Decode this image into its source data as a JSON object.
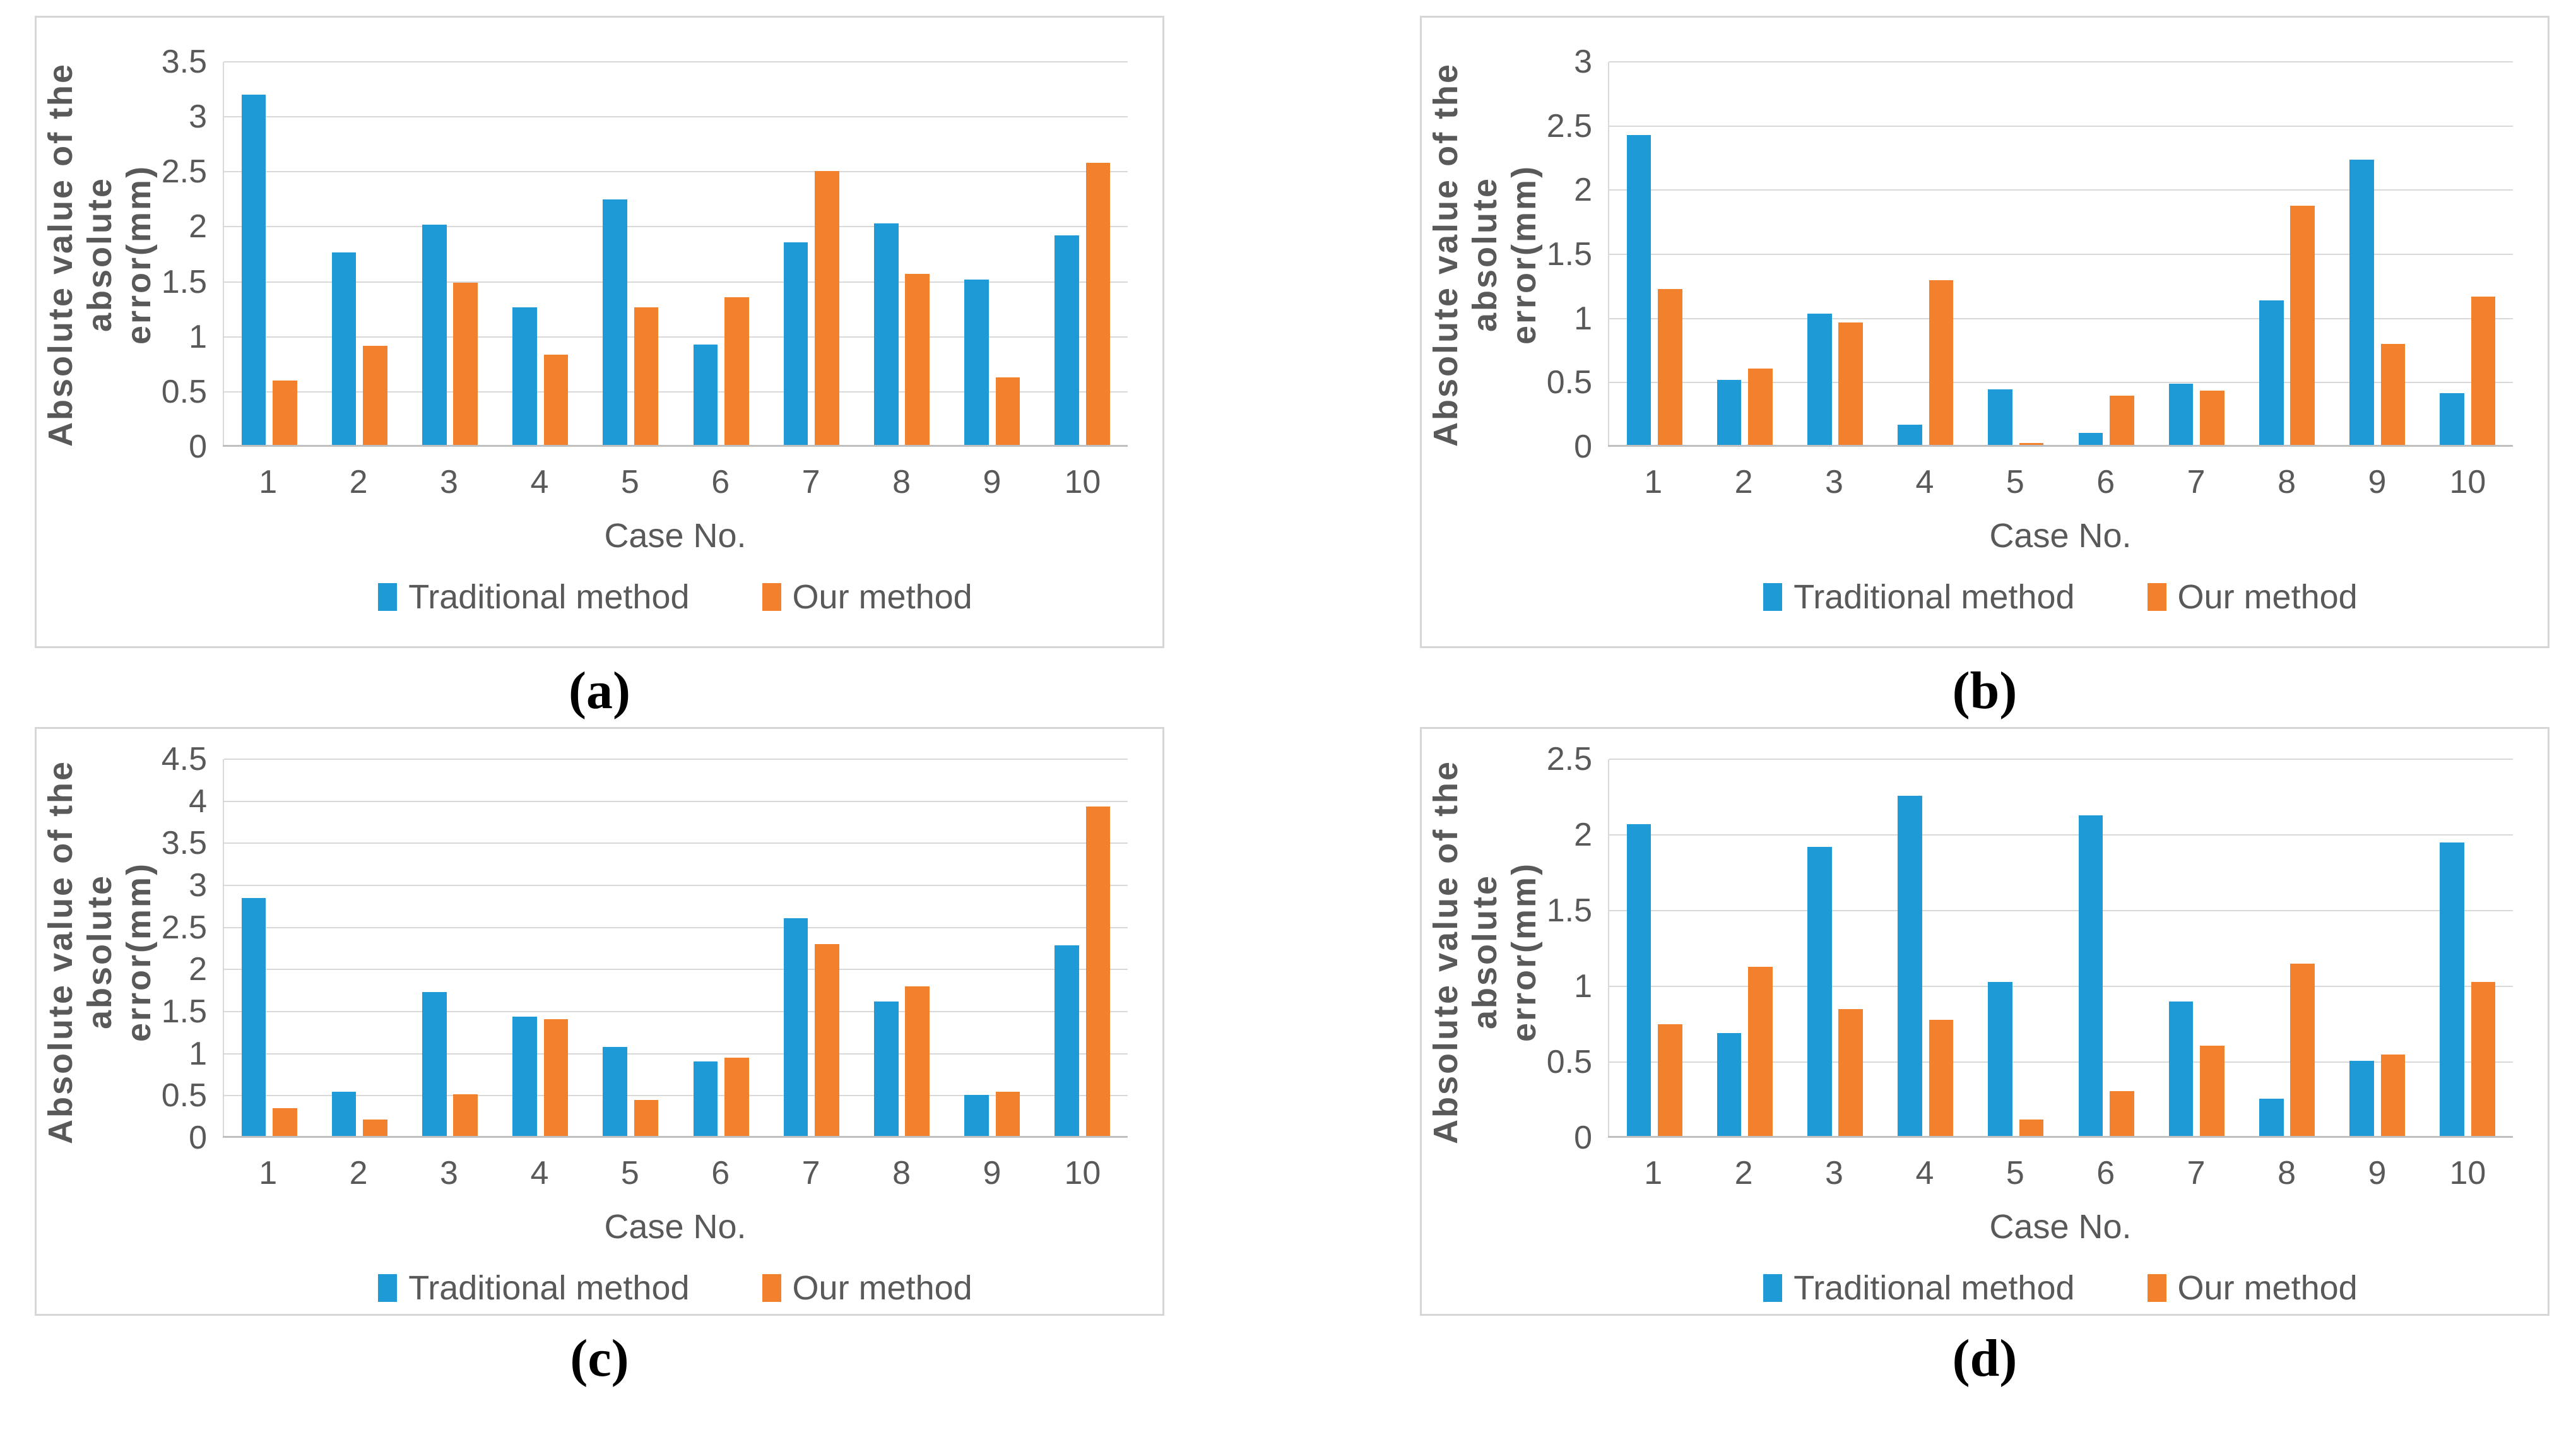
{
  "figure": {
    "text_color": "#595959",
    "grid_color": "#d9d9d9",
    "axis_line_color": "#bfbfbf",
    "panel_border_color": "#d6d6d6",
    "series_colors": {
      "traditional": "#1e9bd7",
      "our": "#f2802c"
    }
  },
  "chart_data": [
    {
      "id": "a",
      "type": "bar",
      "caption": "(a)",
      "categories": [
        "1",
        "2",
        "3",
        "4",
        "5",
        "6",
        "7",
        "8",
        "9",
        "10"
      ],
      "series": [
        {
          "name": "Traditional method",
          "color": "#1e9bd7",
          "values": [
            3.2,
            1.77,
            2.02,
            1.27,
            2.25,
            0.93,
            1.86,
            2.03,
            1.52,
            1.92
          ]
        },
        {
          "name": "Our method",
          "color": "#f2802c",
          "values": [
            0.6,
            0.92,
            1.49,
            0.84,
            1.27,
            1.36,
            2.51,
            1.57,
            0.63,
            2.58
          ]
        }
      ],
      "xlabel": "Case No.",
      "ylabel_lines": [
        "Absolute value of the absolute",
        "error(mm)"
      ],
      "ylim": [
        0,
        3.5
      ],
      "ytick_step": 0.5,
      "grid": true,
      "legend_position": "bottom"
    },
    {
      "id": "b",
      "type": "bar",
      "caption": "(b)",
      "categories": [
        "1",
        "2",
        "3",
        "4",
        "5",
        "6",
        "7",
        "8",
        "9",
        "10"
      ],
      "series": [
        {
          "name": "Traditional method",
          "color": "#1e9bd7",
          "values": [
            2.43,
            0.52,
            1.04,
            0.17,
            0.45,
            0.11,
            0.49,
            1.14,
            2.24,
            0.42
          ]
        },
        {
          "name": "Our method",
          "color": "#f2802c",
          "values": [
            1.23,
            0.61,
            0.97,
            1.3,
            0.03,
            0.4,
            0.44,
            1.88,
            0.8,
            1.17
          ]
        }
      ],
      "xlabel": "Case No.",
      "ylabel_lines": [
        "Absolute value of the absolute",
        "error(mm)"
      ],
      "ylim": [
        0,
        3
      ],
      "ytick_step": 0.5,
      "grid": true,
      "legend_position": "bottom"
    },
    {
      "id": "c",
      "type": "bar",
      "caption": "(c)",
      "categories": [
        "1",
        "2",
        "3",
        "4",
        "5",
        "6",
        "7",
        "8",
        "9",
        "10"
      ],
      "series": [
        {
          "name": "Traditional method",
          "color": "#1e9bd7",
          "values": [
            2.85,
            0.55,
            1.73,
            1.44,
            1.08,
            0.91,
            2.61,
            1.62,
            0.51,
            2.29
          ]
        },
        {
          "name": "Our method",
          "color": "#f2802c",
          "values": [
            0.35,
            0.22,
            0.52,
            1.41,
            0.45,
            0.95,
            2.3,
            1.8,
            0.55,
            3.94
          ]
        }
      ],
      "xlabel": "Case No.",
      "ylabel_lines": [
        "Absolute value of the absolute",
        "error(mm)"
      ],
      "ylim": [
        0,
        4.5
      ],
      "ytick_step": 0.5,
      "grid": true,
      "legend_position": "bottom"
    },
    {
      "id": "d",
      "type": "bar",
      "caption": "(d)",
      "categories": [
        "1",
        "2",
        "3",
        "4",
        "5",
        "6",
        "7",
        "8",
        "9",
        "10"
      ],
      "series": [
        {
          "name": "Traditional method",
          "color": "#1e9bd7",
          "values": [
            2.07,
            0.69,
            1.92,
            2.26,
            1.03,
            2.13,
            0.9,
            0.26,
            0.51,
            1.95
          ]
        },
        {
          "name": "Our method",
          "color": "#f2802c",
          "values": [
            0.75,
            1.13,
            0.85,
            0.78,
            0.12,
            0.31,
            0.61,
            1.15,
            0.55,
            1.03
          ]
        }
      ],
      "xlabel": "Case No.",
      "ylabel_lines": [
        "Absolute value of the absolute",
        "error(mm)"
      ],
      "ylim": [
        0,
        2.5
      ],
      "ytick_step": 0.5,
      "grid": true,
      "legend_position": "bottom"
    }
  ]
}
